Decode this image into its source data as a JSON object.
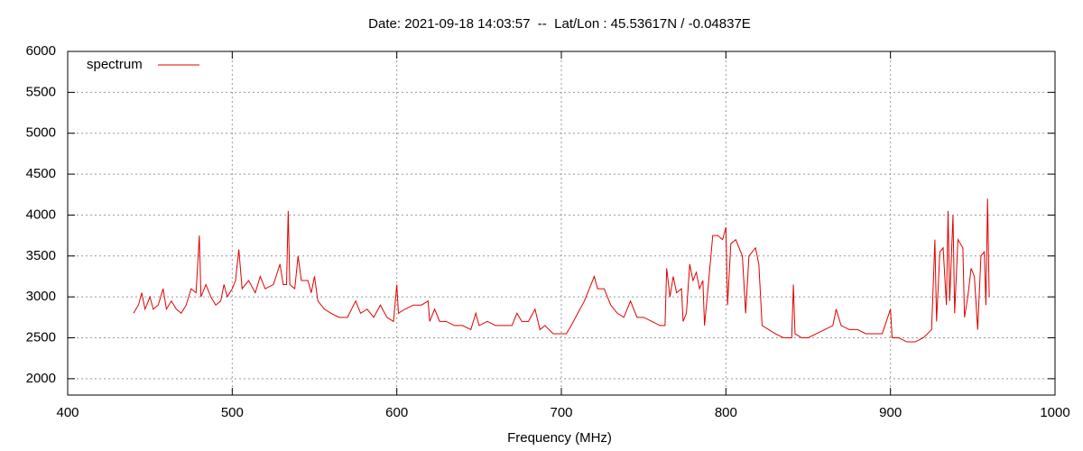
{
  "chart_data": {
    "type": "line",
    "title": "Date: 2021-09-18 14:03:57  --  Lat/Lon : 45.53617N / -0.04837E",
    "xlabel": "Frequency (MHz)",
    "xlim": [
      400,
      1000
    ],
    "xticks": [
      400,
      500,
      600,
      700,
      800,
      900,
      1000
    ],
    "ylim": [
      1800,
      6000
    ],
    "yticks": [
      2000,
      2500,
      3000,
      3500,
      4000,
      4500,
      5000,
      5500,
      6000
    ],
    "grid": true,
    "legend": "top-left",
    "x": [
      440,
      443,
      445,
      447,
      450,
      452,
      455,
      458,
      460,
      463,
      466,
      469,
      472,
      475,
      478,
      480,
      481,
      484,
      487,
      490,
      493,
      495,
      497,
      500,
      502,
      504,
      506,
      510,
      514,
      517,
      520,
      525,
      529,
      531,
      533,
      534,
      535,
      538,
      540,
      542,
      546,
      548,
      550,
      552,
      556,
      560,
      565,
      570,
      575,
      578,
      582,
      586,
      590,
      594,
      598,
      600,
      601,
      605,
      610,
      615,
      619,
      620,
      623,
      626,
      630,
      635,
      640,
      645,
      648,
      650,
      655,
      660,
      665,
      670,
      673,
      676,
      680,
      684,
      687,
      690,
      695,
      700,
      703,
      706,
      710,
      714,
      718,
      720,
      722,
      726,
      730,
      734,
      738,
      742,
      746,
      750,
      755,
      760,
      763,
      764,
      766,
      768,
      770,
      773,
      774,
      776,
      778,
      780,
      782,
      784,
      786,
      787,
      790,
      792,
      795,
      798,
      800,
      801,
      803,
      806,
      810,
      812,
      814,
      818,
      820,
      822,
      826,
      830,
      835,
      840,
      841,
      842,
      846,
      850,
      855,
      860,
      865,
      867,
      870,
      875,
      880,
      885,
      890,
      895,
      900,
      901,
      905,
      910,
      915,
      920,
      925,
      927,
      928,
      930,
      932,
      934,
      935,
      936,
      938,
      939,
      941,
      944,
      945,
      947,
      949,
      951,
      953,
      955,
      957,
      958,
      959,
      960
    ],
    "series": [
      {
        "name": "spectrum",
        "color": "#e00000",
        "values": [
          2800,
          2900,
          3050,
          2850,
          3000,
          2850,
          2900,
          3100,
          2850,
          2950,
          2850,
          2800,
          2900,
          3100,
          3050,
          3750,
          3000,
          3150,
          3000,
          2900,
          2950,
          3150,
          3000,
          3100,
          3200,
          3580,
          3100,
          3200,
          3050,
          3250,
          3100,
          3150,
          3400,
          3150,
          3150,
          4050,
          3150,
          3100,
          3500,
          3200,
          3200,
          3050,
          3250,
          2950,
          2850,
          2800,
          2750,
          2750,
          2950,
          2800,
          2850,
          2750,
          2900,
          2750,
          2700,
          3150,
          2800,
          2850,
          2900,
          2900,
          2950,
          2700,
          2850,
          2700,
          2700,
          2650,
          2650,
          2600,
          2800,
          2650,
          2700,
          2650,
          2650,
          2650,
          2800,
          2700,
          2700,
          2850,
          2600,
          2650,
          2550,
          2550,
          2550,
          2650,
          2800,
          2950,
          3150,
          3250,
          3100,
          3100,
          2900,
          2800,
          2750,
          2950,
          2750,
          2750,
          2700,
          2650,
          2650,
          3350,
          3000,
          3250,
          3050,
          3100,
          2700,
          2800,
          3400,
          3200,
          3300,
          3100,
          3200,
          2650,
          3300,
          3750,
          3750,
          3700,
          3850,
          2900,
          3650,
          3700,
          3500,
          2800,
          3500,
          3600,
          3400,
          2650,
          2600,
          2550,
          2500,
          2500,
          3150,
          2550,
          2500,
          2500,
          2550,
          2600,
          2650,
          2850,
          2650,
          2600,
          2600,
          2550,
          2550,
          2550,
          2850,
          2500,
          2500,
          2450,
          2450,
          2500,
          2600,
          3700,
          2700,
          3550,
          3600,
          2900,
          4050,
          2950,
          4000,
          2800,
          3700,
          3600,
          2750,
          3000,
          3350,
          3250,
          2600,
          3500,
          3550,
          2900,
          4200,
          3000
        ]
      }
    ]
  }
}
